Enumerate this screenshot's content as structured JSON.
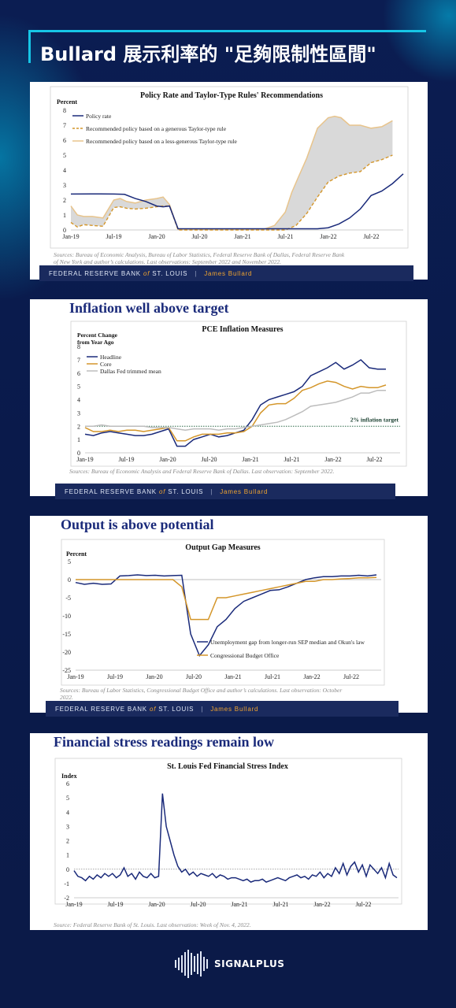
{
  "page_title": "Bullard 展示利率的 \"足夠限制性區間\"",
  "brand": {
    "footer_fed": "FEDERAL RESERVE BANK",
    "footer_of": "of",
    "footer_stl": "ST. LOUIS",
    "footer_sep": "|",
    "footer_person": "James Bullard"
  },
  "logo": {
    "text": "SIGNALPLUS"
  },
  "colors": {
    "navy_line": "#1a2a7a",
    "orange_line": "#d4962a",
    "gray_line": "#bdbdbd",
    "band_fill": "#d9d9d9",
    "dotted_target": "#2e6b4a"
  },
  "chart_data": [
    {
      "type": "line",
      "title": "Policy Rate and Taylor-Type Rules' Recommendations",
      "ylabel": "Percent",
      "ylim": [
        0,
        8
      ],
      "yticks": [
        "0",
        "1",
        "2",
        "3",
        "4",
        "5",
        "6",
        "7",
        "8"
      ],
      "xticks": [
        "Jan-19",
        "Jul-19",
        "Jan-20",
        "Jul-20",
        "Jan-21",
        "Jul-21",
        "Jan-22",
        "Jul-22"
      ],
      "x_range_quarters": [
        0,
        15.5
      ],
      "series": [
        {
          "name": "Policy rate",
          "color": "#1a2a7a",
          "style": "solid",
          "x": [
            0,
            1,
            2,
            2.5,
            3,
            3.5,
            4,
            4.3,
            4.6,
            5,
            6,
            7,
            8,
            9,
            10,
            11,
            11.5,
            12,
            12.5,
            13,
            13.5,
            14,
            14.5,
            15,
            15.5
          ],
          "values": [
            2.4,
            2.41,
            2.4,
            2.38,
            2.1,
            1.9,
            1.6,
            1.55,
            1.6,
            0.08,
            0.08,
            0.08,
            0.08,
            0.08,
            0.08,
            0.08,
            0.08,
            0.15,
            0.4,
            0.8,
            1.4,
            2.3,
            2.6,
            3.1,
            3.75
          ]
        },
        {
          "name": "Recommended policy based on a generous Taylor-type rule",
          "color": "#d4962a",
          "style": "dashed",
          "x": [
            0,
            0.3,
            0.6,
            1,
            1.5,
            2,
            2.3,
            2.6,
            3,
            3.5,
            4,
            4.3,
            4.6,
            5,
            6,
            7,
            8,
            9,
            9.5,
            10,
            10.5,
            11,
            11.5,
            12,
            12.5,
            13,
            13.5,
            14,
            14.5,
            15
          ],
          "values": [
            0.5,
            0.2,
            0.35,
            0.3,
            0.25,
            1.5,
            1.55,
            1.45,
            1.4,
            1.45,
            1.55,
            1.6,
            1.6,
            0,
            0,
            0,
            0,
            0,
            0,
            0,
            0.3,
            1.1,
            2.2,
            3.2,
            3.6,
            3.8,
            3.9,
            4.5,
            4.7,
            5.0
          ]
        },
        {
          "name": "Recommended policy based on a less-generous Taylor-type rule",
          "color": "#e8c48c",
          "style": "solid",
          "x": [
            0,
            0.3,
            0.6,
            1,
            1.5,
            2,
            2.3,
            2.6,
            3,
            3.5,
            4,
            4.3,
            4.6,
            5,
            6,
            7,
            8,
            9,
            9.5,
            10,
            10.3,
            10.6,
            11,
            11.5,
            12,
            12.3,
            12.6,
            13,
            13.5,
            14,
            14.5,
            15
          ],
          "values": [
            1.6,
            1.0,
            0.9,
            0.9,
            0.8,
            2.0,
            2.1,
            1.9,
            1.8,
            2.0,
            2.1,
            2.2,
            1.7,
            0.05,
            0.05,
            0.05,
            0.05,
            0.05,
            0.3,
            1.2,
            2.5,
            3.5,
            4.8,
            6.8,
            7.5,
            7.6,
            7.5,
            7.0,
            7.0,
            6.8,
            6.9,
            7.3
          ]
        }
      ],
      "sources": "Sources: Bureau of Economic Analysis, Bureau of Labor Statistics, Federal Reserve Bank of Dallas, Federal Reserve Bank of New York and author’s calculations. Last observations: September 2022 and November 2022."
    },
    {
      "type": "line",
      "heading": "Inflation well above target",
      "title": "PCE Inflation Measures",
      "ylabel": "Percent Change from Year Ago",
      "ylim": [
        0,
        8
      ],
      "yticks": [
        "0",
        "1",
        "2",
        "3",
        "4",
        "5",
        "6",
        "7",
        "8"
      ],
      "xticks": [
        "Jan-19",
        "Jul-19",
        "Jan-20",
        "Jul-20",
        "Jan-21",
        "Jul-21",
        "Jan-22",
        "Jul-22"
      ],
      "annotation": "2% inflation target",
      "target": 2,
      "series": [
        {
          "name": "Headline",
          "color": "#1a2a7a",
          "values": [
            1.4,
            1.3,
            1.5,
            1.6,
            1.5,
            1.4,
            1.3,
            1.3,
            1.4,
            1.6,
            1.8,
            0.5,
            0.5,
            1.0,
            1.2,
            1.4,
            1.2,
            1.3,
            1.5,
            1.7,
            2.5,
            3.6,
            4.0,
            4.2,
            4.4,
            4.6,
            5.0,
            5.8,
            6.1,
            6.4,
            6.8,
            6.3,
            6.6,
            7.0,
            6.4,
            6.3,
            6.3
          ]
        },
        {
          "name": "Core",
          "color": "#d4962a",
          "values": [
            1.9,
            1.6,
            1.6,
            1.7,
            1.6,
            1.7,
            1.7,
            1.6,
            1.7,
            1.8,
            1.9,
            0.9,
            0.9,
            1.2,
            1.4,
            1.4,
            1.4,
            1.5,
            1.5,
            1.6,
            2.0,
            3.0,
            3.6,
            3.7,
            3.7,
            4.1,
            4.7,
            4.9,
            5.2,
            5.4,
            5.3,
            5.0,
            4.8,
            5.0,
            4.9,
            4.9,
            5.1
          ]
        },
        {
          "name": "Dallas Fed trimmed mean",
          "color": "#bdbdbd",
          "values": [
            2.0,
            2.0,
            2.1,
            2.0,
            2.0,
            2.0,
            2.0,
            2.0,
            1.9,
            1.9,
            1.9,
            1.8,
            1.7,
            1.8,
            1.8,
            1.8,
            1.7,
            1.8,
            1.8,
            1.9,
            2.0,
            2.1,
            2.2,
            2.3,
            2.5,
            2.8,
            3.1,
            3.5,
            3.6,
            3.7,
            3.8,
            4.0,
            4.2,
            4.5,
            4.5,
            4.7,
            4.7
          ]
        }
      ],
      "sources": "Sources: Bureau of Economic Analysis and Federal Reserve Bank of Dallas. Last observation: September 2022."
    },
    {
      "type": "line",
      "heading": "Output is above potential",
      "title": "Output Gap Measures",
      "ylabel": "Percent",
      "ylim": [
        -25,
        5
      ],
      "yticks": [
        "-25",
        "-20",
        "-15",
        "-10",
        "-5",
        "0",
        "5"
      ],
      "xticks": [
        "Jan-19",
        "Jul-19",
        "Jan-20",
        "Jul-20",
        "Jan-21",
        "Jul-21",
        "Jan-22",
        "Jul-22"
      ],
      "series": [
        {
          "name": "Unemployment gap from longer-run SEP median and Okun's law",
          "color": "#1a2a7a",
          "values": [
            -0.8,
            -1.3,
            -1.0,
            -1.3,
            -1.2,
            1.0,
            1.1,
            1.3,
            1.1,
            1.2,
            1.0,
            1.1,
            1.2,
            -15,
            -21,
            -18,
            -13,
            -11,
            -8,
            -6,
            -5,
            -4,
            -3,
            -2.8,
            -2.0,
            -1.0,
            0,
            0.5,
            0.8,
            0.8,
            1.0,
            1.0,
            1.2,
            1.0,
            1.3
          ]
        },
        {
          "name": "Congressional Budget Office",
          "color": "#d4962a",
          "values": [
            0,
            0,
            0,
            0,
            0,
            0,
            0,
            0,
            0,
            0,
            0,
            0,
            -2,
            -11,
            -11,
            -11,
            -5,
            -5,
            -4.5,
            -4,
            -3.5,
            -3,
            -2.5,
            -2,
            -1.5,
            -1,
            -0.5,
            -0.5,
            0,
            0,
            0.2,
            0.3,
            0.5,
            0.5,
            0.6
          ]
        }
      ],
      "sources": "Sources: Bureau of Labor Statistics, Congressional Budget Office and author’s calculations. Last observation: October 2022."
    },
    {
      "type": "line",
      "heading": "Financial stress readings remain low",
      "title": "St. Louis Fed Financial Stress Index",
      "ylabel": "Index",
      "ylim": [
        -2,
        6
      ],
      "yticks": [
        "-2",
        "-1",
        "0",
        "1",
        "2",
        "3",
        "4",
        "5",
        "6"
      ],
      "xticks": [
        "Jan-19",
        "Jul-19",
        "Jan-20",
        "Jul-20",
        "Jan-21",
        "Jul-21",
        "Jan-22",
        "Jul-22"
      ],
      "series": [
        {
          "name": "",
          "color": "#1a2a7a",
          "values": [
            -0.1,
            -0.5,
            -0.6,
            -0.8,
            -0.5,
            -0.7,
            -0.4,
            -0.6,
            -0.3,
            -0.5,
            -0.3,
            -0.6,
            -0.4,
            0.1,
            -0.5,
            -0.3,
            -0.7,
            -0.2,
            -0.5,
            -0.6,
            -0.3,
            -0.6,
            -0.5,
            5.3,
            3.0,
            2.0,
            1.0,
            0.2,
            -0.2,
            0.0,
            -0.4,
            -0.2,
            -0.5,
            -0.3,
            -0.4,
            -0.5,
            -0.3,
            -0.6,
            -0.4,
            -0.5,
            -0.7,
            -0.6,
            -0.6,
            -0.7,
            -0.8,
            -0.7,
            -0.9,
            -0.8,
            -0.8,
            -0.7,
            -0.9,
            -0.8,
            -0.7,
            -0.6,
            -0.7,
            -0.8,
            -0.6,
            -0.5,
            -0.4,
            -0.6,
            -0.5,
            -0.7,
            -0.4,
            -0.5,
            -0.2,
            -0.6,
            -0.3,
            -0.5,
            0.1,
            -0.3,
            0.4,
            -0.4,
            0.2,
            0.5,
            -0.2,
            0.3,
            -0.5,
            0.3,
            0.0,
            -0.3,
            0.1,
            -0.6,
            0.4,
            -0.4,
            -0.6
          ]
        }
      ],
      "sources": "Source: Federal Reserve Bank of St. Louis. Last observation: Week of Nov. 4, 2022."
    }
  ]
}
